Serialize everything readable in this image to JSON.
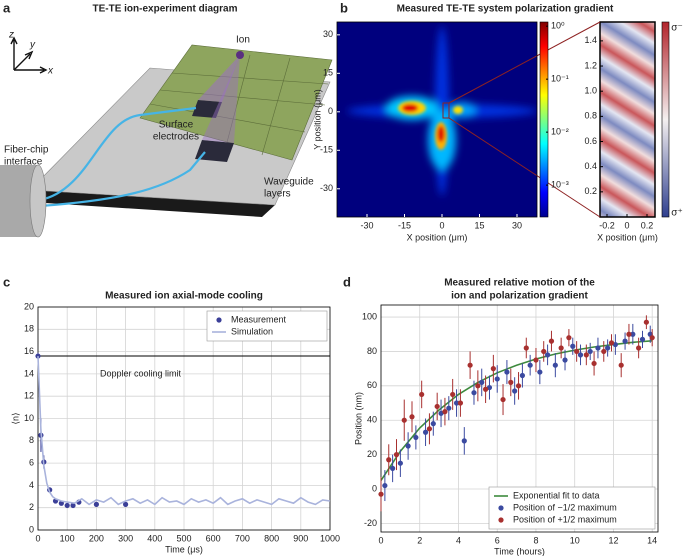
{
  "panel_labels": [
    "a",
    "b",
    "c",
    "d"
  ],
  "diagram": {
    "title": "TE-TE ion-experiment diagram",
    "axes": [
      "z",
      "y",
      "x"
    ],
    "ion": "Ion",
    "fiber": [
      "Fiber-chip",
      "interface"
    ],
    "electrodes": [
      "Surface",
      "electrodes"
    ],
    "waveguide": [
      "Waveguide",
      "layers"
    ]
  },
  "chart_data": [
    {
      "type": "heatmap",
      "title": "Measured TE-TE system polarization gradient",
      "xlabel": "X position (μm)",
      "ylabel": "Y position (μm)",
      "xlim": [
        -42,
        38
      ],
      "ylim": [
        -41,
        35
      ],
      "xticks": [
        -30,
        -15,
        0,
        15,
        30
      ],
      "yticks": [
        -30,
        -15,
        0,
        15,
        30
      ],
      "colorbar": {
        "scale": "log",
        "lim": [
          0.00025,
          1.2
        ],
        "ticks": [
          {
            "value": 1,
            "label": "10⁰"
          },
          {
            "value": 0.1,
            "label": "10⁻¹"
          },
          {
            "value": 0.01,
            "label": "10⁻²"
          },
          {
            "value": 0.001,
            "label": "10⁻³"
          }
        ]
      },
      "inset": {
        "xlabel": "X position (μm)",
        "xlim": [
          -0.27,
          0.28
        ],
        "ylim": [
          0,
          1.55
        ],
        "xticks": [
          -0.2,
          0,
          0.2
        ],
        "yticks": [
          0.2,
          0.4,
          0.6,
          0.8,
          {
            "value": 1,
            "label": "1.0"
          },
          1.2,
          1.4
        ],
        "colorbar_labels": [
          "σ⁻",
          "σ⁺"
        ]
      }
    },
    {
      "type": "scatter",
      "title": "Measured ion axial-mode cooling",
      "xlabel": "Time (μs)",
      "ylabel": "⟨n⟩",
      "xlim": [
        0,
        1000
      ],
      "ylim": [
        0,
        20
      ],
      "xticks": [
        0,
        100,
        200,
        300,
        400,
        500,
        600,
        700,
        800,
        900,
        1000
      ],
      "yticks": [
        0,
        2,
        4,
        6,
        8,
        10,
        12,
        14,
        16,
        18,
        20
      ],
      "grid": true,
      "legend": "upper right",
      "hline": {
        "value": 15.6,
        "label": "Doppler cooling limit"
      },
      "series": [
        {
          "name": "Measurement",
          "kind": "points",
          "color": "#3b3f98",
          "x": [
            0,
            10,
            20,
            40,
            60,
            80,
            100,
            120,
            140,
            200,
            300
          ],
          "values": [
            15.6,
            8.5,
            6.1,
            3.6,
            2.6,
            2.4,
            2.2,
            2.2,
            2.5,
            2.3,
            2.3
          ],
          "errors": [
            0.3,
            1.5,
            0.6,
            0.2,
            0.2,
            0.2,
            0.2,
            0.2,
            0.2,
            0.2,
            0.2
          ]
        },
        {
          "name": "Simulation",
          "kind": "line",
          "color": "#a9b3dc",
          "x": [
            0,
            10,
            20,
            30,
            40,
            50,
            60,
            80,
            100,
            125,
            150,
            175,
            200,
            225,
            250,
            275,
            300,
            325,
            350,
            375,
            400,
            425,
            450,
            475,
            500,
            525,
            550,
            575,
            600,
            625,
            650,
            675,
            700,
            725,
            750,
            775,
            800,
            825,
            850,
            875,
            900,
            925,
            950,
            975,
            1000
          ],
          "values": [
            15.6,
            9,
            5.8,
            4.2,
            3.4,
            3,
            2.8,
            2.6,
            2.5,
            2.4,
            2.8,
            2.3,
            2.7,
            2.5,
            2.9,
            2.3,
            2.6,
            2.8,
            2.4,
            2.7,
            2.3,
            2.9,
            2.5,
            2.6,
            2.3,
            2.8,
            2.5,
            2.7,
            2.4,
            2.9,
            2.3,
            2.6,
            2.8,
            2.4,
            2.7,
            2.5,
            2.3,
            2.8,
            2.6,
            2.4,
            2.9,
            2.5,
            2.3,
            2.7,
            2.6
          ]
        }
      ]
    },
    {
      "type": "scatter",
      "title_lines": [
        "Measured relative motion of the",
        "ion and polarization gradient"
      ],
      "xlabel": "Time (hours)",
      "ylabel": "Position (nm)",
      "xlim": [
        0,
        14.3
      ],
      "ylim": [
        -25,
        107
      ],
      "xticks": [
        0,
        2,
        4,
        6,
        8,
        10,
        12,
        14
      ],
      "yticks": [
        -20,
        0,
        20,
        40,
        60,
        80,
        100
      ],
      "grid": true,
      "legend": "lower right",
      "series": [
        {
          "name": "Exponential fit to data",
          "kind": "line",
          "color": "#3d8a3d",
          "x": [
            0,
            1,
            2,
            3,
            4,
            5,
            6,
            7,
            8,
            9,
            10,
            11,
            12,
            13,
            14
          ],
          "values": [
            5,
            22,
            35.5,
            46,
            55,
            62,
            67.6,
            72,
            75.6,
            78.5,
            80.8,
            82.6,
            84,
            85.3,
            86.2
          ]
        },
        {
          "name": "Position of −1/2 maximum",
          "kind": "points",
          "color": "#3b4aa0",
          "x": [
            0.2,
            0.6,
            1.0,
            1.4,
            1.8,
            2.3,
            2.7,
            3.1,
            3.5,
            3.9,
            4.3,
            4.8,
            5.2,
            5.6,
            6.0,
            6.5,
            6.9,
            7.3,
            7.7,
            8.2,
            8.6,
            9.0,
            9.5,
            9.9,
            10.3,
            10.8,
            11.2,
            11.7,
            12.1,
            12.6,
            13.0,
            13.5,
            13.9
          ],
          "values": [
            2,
            12,
            15,
            25,
            30,
            33,
            38,
            44,
            47,
            50,
            28,
            56,
            62,
            59,
            64,
            68,
            57,
            66,
            72,
            68,
            78,
            72,
            75,
            83,
            78,
            80,
            82,
            82,
            84,
            86,
            90,
            87,
            90
          ],
          "errors": [
            9,
            8,
            8,
            8,
            7,
            8,
            7,
            8,
            7,
            8,
            8,
            7,
            8,
            7,
            8,
            7,
            8,
            7,
            6,
            7,
            6,
            7,
            6,
            5,
            6,
            5,
            6,
            5,
            6,
            5,
            6,
            5,
            5
          ]
        },
        {
          "name": "Position of +1/2 maximum",
          "kind": "points",
          "color": "#a8302f",
          "x": [
            0.0,
            0.4,
            0.8,
            1.2,
            1.6,
            2.1,
            2.5,
            2.9,
            3.3,
            3.7,
            4.1,
            4.6,
            5.0,
            5.4,
            5.8,
            6.3,
            6.7,
            7.1,
            7.5,
            8.0,
            8.4,
            8.8,
            9.3,
            9.7,
            10.1,
            10.6,
            11.0,
            11.5,
            11.9,
            12.4,
            12.8,
            13.3,
            13.7,
            14.0
          ],
          "values": [
            -3,
            17,
            20,
            40,
            42,
            55,
            35,
            48,
            45,
            55,
            50,
            72,
            60,
            58,
            70,
            52,
            62,
            60,
            82,
            75,
            80,
            86,
            82,
            88,
            80,
            78,
            73,
            80,
            85,
            72,
            90,
            82,
            97,
            88
          ],
          "errors": [
            10,
            9,
            9,
            12,
            9,
            8,
            9,
            8,
            8,
            9,
            8,
            8,
            9,
            8,
            8,
            9,
            8,
            8,
            6,
            7,
            6,
            6,
            6,
            5,
            6,
            6,
            7,
            6,
            5,
            7,
            6,
            6,
            4,
            5
          ]
        }
      ]
    }
  ]
}
